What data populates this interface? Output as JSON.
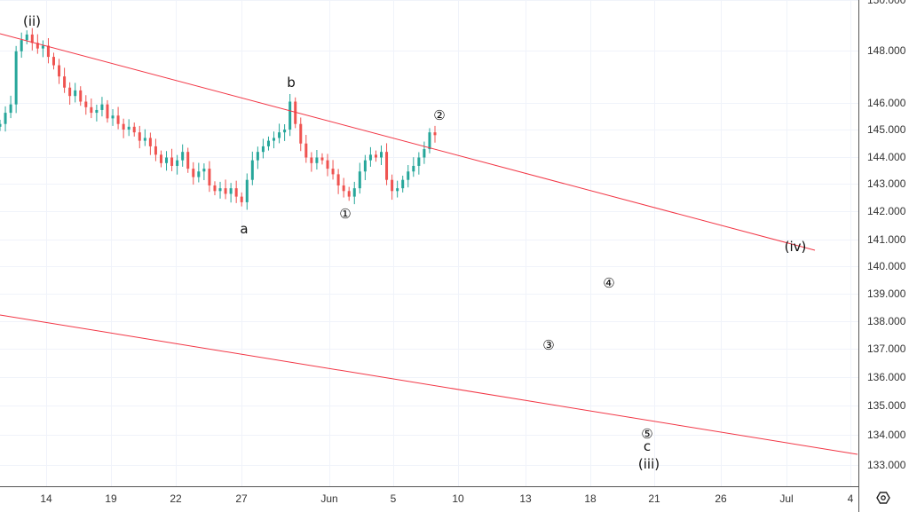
{
  "chart_data": {
    "type": "candlestick",
    "title": "",
    "price_axis": {
      "ticks": [
        "150.000",
        "148.000",
        "146.000",
        "145.000",
        "144.000",
        "143.000",
        "142.000",
        "141.000",
        "140.000",
        "139.000",
        "138.000",
        "137.000",
        "136.000",
        "135.000",
        "134.000",
        "133.000"
      ],
      "range": [
        132.7,
        150
      ]
    },
    "time_axis": {
      "ticks": [
        "14",
        "19",
        "22",
        "27",
        "Jun",
        "5",
        "10",
        "13",
        "18",
        "21",
        "26",
        "Jul",
        "4"
      ]
    },
    "closes": [
      145.2,
      145.6,
      145.9,
      147.8,
      148.2,
      148.4,
      148.1,
      147.9,
      148.0,
      147.6,
      147.3,
      146.9,
      146.5,
      146.2,
      146.4,
      146.0,
      145.8,
      145.6,
      145.7,
      145.9,
      145.4,
      145.5,
      145.2,
      145.0,
      145.1,
      144.9,
      144.6,
      144.7,
      144.4,
      144.1,
      143.8,
      144.0,
      143.7,
      143.9,
      144.2,
      143.6,
      143.3,
      143.5,
      143.6,
      143.0,
      142.8,
      142.9,
      142.7,
      142.9,
      142.6,
      142.4,
      143.2,
      143.9,
      144.2,
      144.4,
      144.6,
      144.7,
      144.9,
      145.0,
      146.0,
      145.2,
      144.5,
      144.0,
      143.8,
      144.0,
      143.9,
      143.6,
      143.4,
      143.0,
      142.8,
      142.6,
      142.9,
      143.5,
      143.9,
      144.1,
      144.0,
      144.2,
      143.2,
      142.8,
      142.9,
      143.2,
      143.5,
      143.7,
      144.0,
      144.3,
      144.9,
      144.8
    ],
    "annotations": [
      "(ii)",
      "b",
      "a",
      "①",
      "②",
      "(iv)",
      "④",
      "③",
      "⑤",
      "c",
      "(iii)"
    ],
    "trendlines": [
      "upper channel",
      "lower channel"
    ],
    "colors": {
      "up": "#26a69a",
      "down": "#ef5350",
      "trendline": "#f23645",
      "grid": "#f0f3fa"
    }
  },
  "settings_icon": "settings-hexagon-icon"
}
